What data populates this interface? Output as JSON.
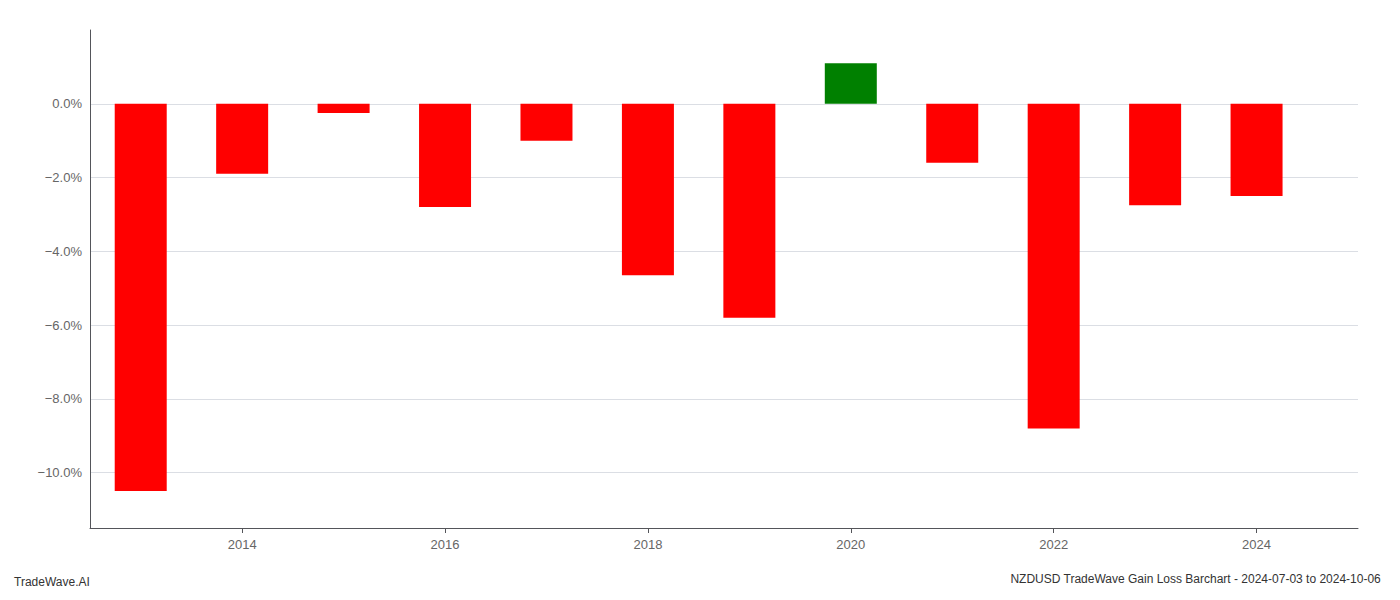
{
  "chart_data": {
    "type": "bar",
    "title": "NZDUSD TradeWave Gain Loss Barchart - 2024-07-03 to 2024-10-06",
    "annotations": [
      "TradeWave.AI"
    ],
    "x": [
      2013,
      2014,
      2015,
      2016,
      2017,
      2018,
      2019,
      2020,
      2021,
      2022,
      2023,
      2024
    ],
    "values": [
      -10.5,
      -1.9,
      -0.25,
      -2.8,
      -1.0,
      -4.65,
      -5.8,
      1.1,
      -1.6,
      -8.8,
      -2.75,
      -2.5
    ],
    "colors": [
      "#ff0000",
      "#ff0000",
      "#ff0000",
      "#ff0000",
      "#ff0000",
      "#ff0000",
      "#ff0000",
      "#008000",
      "#ff0000",
      "#ff0000",
      "#ff0000",
      "#ff0000"
    ],
    "xlim": [
      2012.5,
      2025.0
    ],
    "xticks": [
      2014,
      2016,
      2018,
      2020,
      2022,
      2024
    ],
    "ylim": [
      -11.5,
      2.0
    ],
    "yticks": [
      {
        "value": 0.0,
        "label": "0.0%"
      },
      {
        "value": -2.0,
        "label": "−2.0%"
      },
      {
        "value": -4.0,
        "label": "−4.0%"
      },
      {
        "value": -6.0,
        "label": "−6.0%"
      },
      {
        "value": -8.0,
        "label": "−8.0%"
      },
      {
        "value": -10.0,
        "label": "−10.0%"
      }
    ],
    "grid": true
  }
}
